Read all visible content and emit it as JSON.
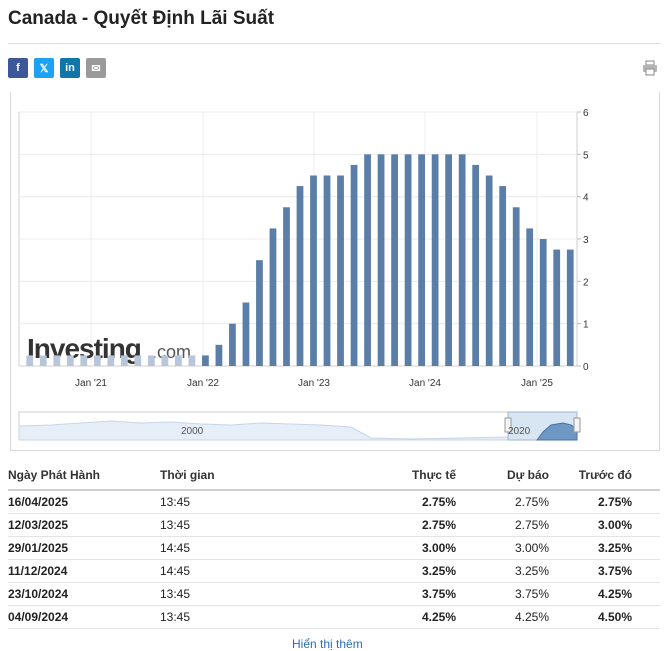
{
  "page": {
    "title": "Canada - Quyết Định Lãi Suất"
  },
  "share": [
    {
      "name": "facebook-icon",
      "glyph": "f",
      "color": "#3b5998"
    },
    {
      "name": "x-icon",
      "glyph": "𝕏",
      "color": "#1da1f2"
    },
    {
      "name": "linkedin-icon",
      "glyph": "in",
      "color": "#0e76a8"
    },
    {
      "name": "email-icon",
      "glyph": "✉",
      "color": "#9a9a9a"
    }
  ],
  "chart_data": {
    "type": "bar",
    "watermark": "Investing.com",
    "bar_color": "#5b7ea8",
    "light_bar_color": "#b7c6da",
    "x_ticks": [
      "Jan '21",
      "Jan '22",
      "Jan '23",
      "Jan '24",
      "Jan '25"
    ],
    "y_ticks": [
      "6",
      "5",
      "4",
      "3",
      "2",
      "1",
      "0"
    ],
    "ylim": [
      0,
      6
    ],
    "grid": true,
    "values": [
      0.25,
      0.25,
      0.25,
      0.25,
      0.25,
      0.25,
      0.25,
      0.25,
      0.25,
      0.25,
      0.25,
      0.25,
      0.25,
      0.25,
      0.5,
      1.0,
      1.5,
      2.5,
      3.25,
      3.75,
      4.25,
      4.5,
      4.5,
      4.5,
      4.75,
      5.0,
      5.0,
      5.0,
      5.0,
      5.0,
      5.0,
      5.0,
      5.0,
      4.75,
      4.5,
      4.25,
      3.75,
      3.25,
      3.0,
      2.75,
      2.75
    ],
    "navigator_labels": [
      "2000",
      "2020"
    ]
  },
  "table": {
    "headers": [
      "Ngày Phát Hành",
      "Thời gian",
      "Thực tế",
      "Dự báo",
      "Trước đó"
    ],
    "rows": [
      [
        "16/04/2025",
        "13:45",
        "2.75%",
        "2.75%",
        "2.75%"
      ],
      [
        "12/03/2025",
        "13:45",
        "2.75%",
        "2.75%",
        "3.00%"
      ],
      [
        "29/01/2025",
        "14:45",
        "3.00%",
        "3.00%",
        "3.25%"
      ],
      [
        "11/12/2024",
        "14:45",
        "3.25%",
        "3.25%",
        "3.75%"
      ],
      [
        "23/10/2024",
        "13:45",
        "3.75%",
        "3.75%",
        "4.25%"
      ],
      [
        "04/09/2024",
        "13:45",
        "4.25%",
        "4.25%",
        "4.50%"
      ]
    ]
  },
  "show_more": "Hiển thị thêm"
}
